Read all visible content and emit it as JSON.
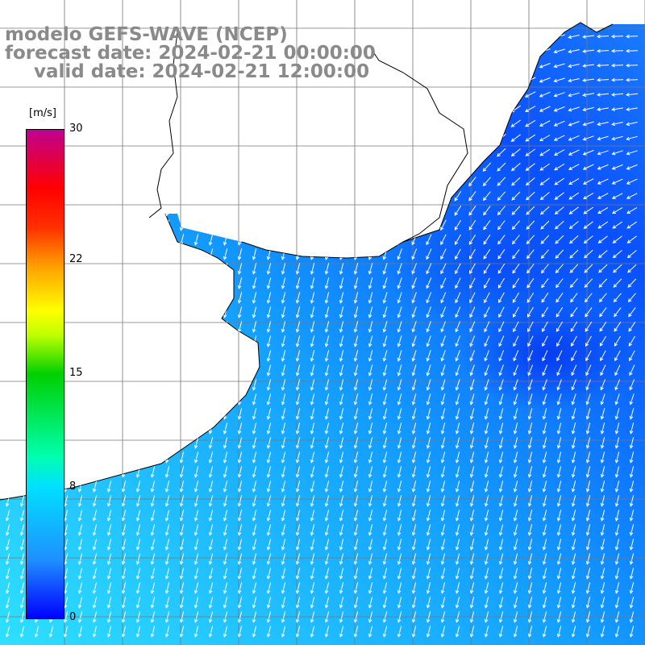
{
  "title": {
    "model": "modelo GEFS-WAVE (NCEP)",
    "forecast": "forecast date: 2024-02-21 00:00:00",
    "valid": "valid date: 2024-02-21 12:00:00"
  },
  "colorbar": {
    "unit": "[m/s]",
    "ticks": [
      "30",
      "22",
      "15",
      "8",
      "0"
    ],
    "tick_values": [
      30,
      22,
      15,
      8,
      0
    ],
    "range": [
      0,
      30
    ]
  },
  "map": {
    "field": "wind speed with direction arrows",
    "prevailing_direction": "southward, turning westward toward the northeast",
    "ocean_color_low": "#0a50ff",
    "ocean_color_mid": "#14a0ff",
    "ocean_color_high": "#2ee0ff",
    "land_color": "#ffffff",
    "grid": true
  }
}
